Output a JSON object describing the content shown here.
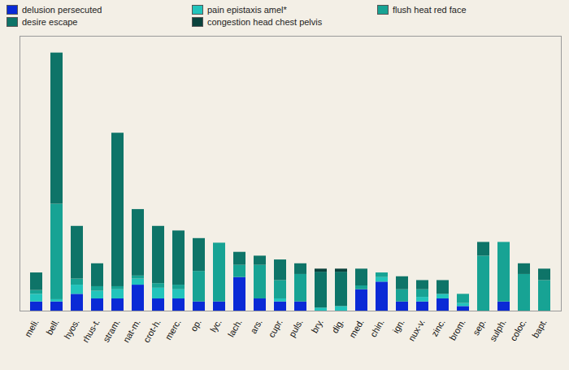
{
  "chart_data": {
    "type": "bar",
    "stacked": true,
    "tick_labels": "x",
    "legend": "top",
    "ylim": [
      0,
      36
    ],
    "yticks": [],
    "categories": [
      "meli.",
      "bell.",
      "hyos.",
      "rhus-t.",
      "stram.",
      "nat-m.",
      "crot-h.",
      "merc.",
      "op.",
      "lyc.",
      "lach.",
      "ars.",
      "cupr.",
      "puls.",
      "bry.",
      "dig.",
      "med.",
      "chin.",
      "ign.",
      "nux-v.",
      "zinc.",
      "brom.",
      "sep.",
      "sulph.",
      "coloc.",
      "bapt."
    ],
    "series": [
      {
        "name": "delusion persecuted",
        "color": "#0a2ad6",
        "values": [
          1.2,
          1.2,
          2.2,
          1.6,
          1.6,
          3.4,
          1.6,
          1.6,
          1.2,
          1.2,
          4.4,
          1.6,
          1.2,
          1.2,
          0,
          0,
          2.8,
          3.8,
          1.2,
          1.2,
          1.6,
          0.6,
          0,
          1.2,
          0,
          0
        ]
      },
      {
        "name": "pain epistaxis amel*",
        "color": "#22c4bc",
        "values": [
          1.0,
          0.3,
          1.2,
          1.0,
          1.2,
          0.8,
          1.4,
          1.2,
          0,
          0,
          0,
          0,
          0.4,
          0,
          0.4,
          0.6,
          0,
          0.6,
          0,
          0.6,
          0.6,
          0.4,
          0,
          0,
          0,
          0
        ]
      },
      {
        "name": "flush heat red face",
        "color": "#17a394",
        "values": [
          0.5,
          12.5,
          0.8,
          0.6,
          0.4,
          0.4,
          0.6,
          0.6,
          4.0,
          7.7,
          1.6,
          4.4,
          2.4,
          3.6,
          0,
          0,
          0.5,
          0.6,
          1.6,
          1.0,
          0,
          1.2,
          7.2,
          7.8,
          4.8,
          4.0
        ]
      },
      {
        "name": "desire escape",
        "color": "#0e7468",
        "values": [
          2.3,
          19.8,
          6.9,
          3.0,
          20.1,
          8.7,
          7.5,
          7.1,
          4.3,
          0,
          1.7,
          1.2,
          2.7,
          1.4,
          4.7,
          4.5,
          2.2,
          0,
          1.7,
          1.2,
          1.8,
          0,
          1.8,
          0,
          1.4,
          1.5
        ]
      },
      {
        "name": "congestion head chest pelvis",
        "color": "#0a423c",
        "values": [
          0,
          0,
          0,
          0,
          0,
          0,
          0,
          0,
          0,
          0,
          0,
          0,
          0,
          0,
          0.4,
          0.4,
          0,
          0,
          0,
          0,
          0,
          0,
          0,
          0,
          0,
          0
        ]
      }
    ]
  }
}
